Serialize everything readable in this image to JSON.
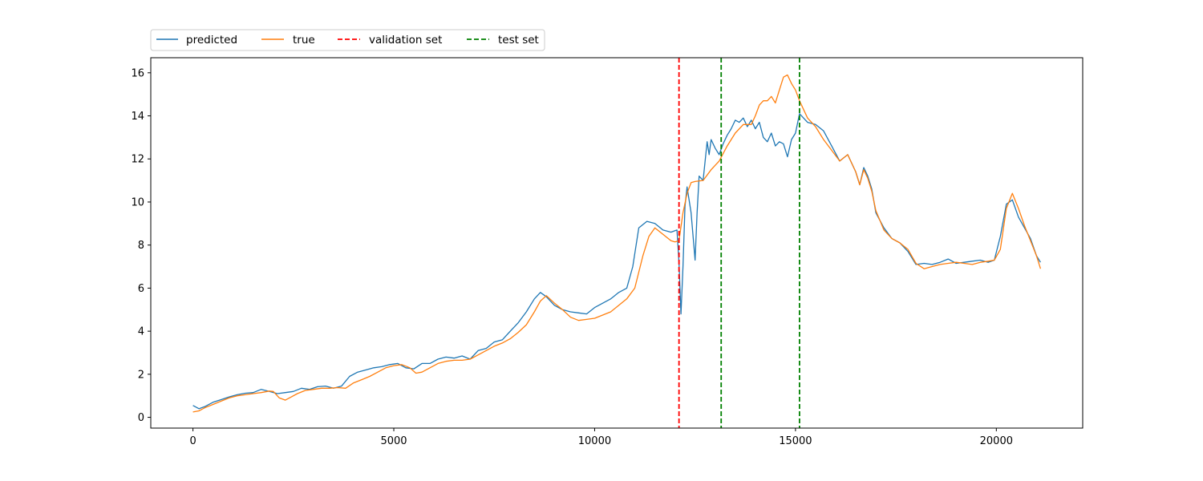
{
  "chart_data": {
    "type": "line",
    "title": "",
    "xlabel": "",
    "ylabel": "",
    "xlim": [
      -1050,
      22150
    ],
    "ylim": [
      -0.5,
      16.7
    ],
    "x_ticks": [
      0,
      5000,
      10000,
      15000,
      20000
    ],
    "y_ticks": [
      0,
      2,
      4,
      6,
      8,
      10,
      12,
      14,
      16
    ],
    "grid": false,
    "legend": {
      "placement": "top-left, outside above the plot",
      "entries": [
        {
          "label": "predicted",
          "color": "#1f77b4",
          "style": "solid"
        },
        {
          "label": "true",
          "color": "#ff7f0e",
          "style": "solid"
        },
        {
          "label": "validation set",
          "color": "#ff0000",
          "style": "dashed"
        },
        {
          "label": "test set",
          "color": "#008000",
          "style": "dashed"
        }
      ]
    },
    "series": [
      {
        "name": "predicted",
        "color": "#1f77b4",
        "x": [
          0,
          150,
          300,
          500,
          700,
          900,
          1100,
          1300,
          1500,
          1700,
          1900,
          2100,
          2300,
          2500,
          2700,
          2900,
          3100,
          3300,
          3500,
          3700,
          3900,
          4100,
          4300,
          4500,
          4700,
          4900,
          5100,
          5300,
          5500,
          5700,
          5900,
          6100,
          6300,
          6500,
          6700,
          6900,
          7100,
          7300,
          7500,
          7700,
          7900,
          8100,
          8300,
          8500,
          8650,
          8800,
          9000,
          9200,
          9400,
          9600,
          9800,
          10000,
          10200,
          10400,
          10600,
          10800,
          10950,
          11100,
          11300,
          11500,
          11700,
          11900,
          12050,
          12100,
          12150,
          12200,
          12250,
          12300,
          12400,
          12500,
          12550,
          12600,
          12700,
          12800,
          12850,
          12900,
          13000,
          13100,
          13200,
          13300,
          13400,
          13500,
          13600,
          13700,
          13800,
          13900,
          14000,
          14100,
          14200,
          14300,
          14400,
          14500,
          14600,
          14700,
          14800,
          14900,
          15000,
          15100,
          15300,
          15500,
          15700,
          15900,
          16100,
          16300,
          16500,
          16600,
          16700,
          16800,
          16900,
          17000,
          17200,
          17400,
          17600,
          17800,
          18000,
          18200,
          18400,
          18600,
          18800,
          19000,
          19200,
          19400,
          19600,
          19800,
          19950,
          20100,
          20250,
          20400,
          20550,
          20700,
          20850,
          21000,
          21100
        ],
        "values": [
          0.55,
          0.4,
          0.5,
          0.7,
          0.82,
          0.95,
          1.05,
          1.12,
          1.15,
          1.3,
          1.2,
          1.1,
          1.15,
          1.2,
          1.35,
          1.3,
          1.42,
          1.45,
          1.35,
          1.45,
          1.9,
          2.1,
          2.2,
          2.3,
          2.35,
          2.45,
          2.5,
          2.3,
          2.25,
          2.5,
          2.5,
          2.7,
          2.8,
          2.75,
          2.85,
          2.7,
          3.1,
          3.2,
          3.5,
          3.6,
          4.0,
          4.4,
          4.9,
          5.5,
          5.8,
          5.6,
          5.2,
          5.0,
          4.9,
          4.85,
          4.8,
          5.1,
          5.3,
          5.5,
          5.8,
          6.0,
          7.0,
          8.8,
          9.1,
          9.0,
          8.7,
          8.6,
          8.7,
          7.2,
          4.8,
          7.0,
          9.8,
          10.7,
          9.5,
          7.3,
          9.5,
          11.2,
          11.0,
          12.8,
          12.2,
          12.9,
          12.5,
          12.2,
          12.7,
          13.1,
          13.4,
          13.8,
          13.7,
          13.9,
          13.5,
          13.8,
          13.4,
          13.7,
          13.0,
          12.8,
          13.2,
          12.6,
          12.8,
          12.7,
          12.1,
          12.9,
          13.2,
          14.1,
          13.7,
          13.6,
          13.3,
          12.6,
          11.9,
          12.2,
          11.4,
          10.8,
          11.6,
          11.2,
          10.6,
          9.5,
          8.8,
          8.3,
          8.1,
          7.7,
          7.1,
          7.15,
          7.1,
          7.2,
          7.35,
          7.15,
          7.2,
          7.25,
          7.3,
          7.2,
          7.3,
          8.4,
          9.9,
          10.1,
          9.3,
          8.8,
          8.3,
          7.5,
          7.2
        ]
      },
      {
        "name": "true",
        "color": "#ff7f0e",
        "x": [
          0,
          150,
          300,
          500,
          700,
          900,
          1100,
          1300,
          1500,
          1700,
          1900,
          2000,
          2150,
          2300,
          2450,
          2600,
          2800,
          3000,
          3200,
          3400,
          3600,
          3800,
          4000,
          4200,
          4400,
          4600,
          4800,
          5000,
          5200,
          5400,
          5550,
          5700,
          5900,
          6100,
          6300,
          6500,
          6700,
          6900,
          7100,
          7300,
          7500,
          7700,
          7900,
          8100,
          8300,
          8500,
          8650,
          8800,
          9000,
          9200,
          9400,
          9600,
          9800,
          10000,
          10200,
          10400,
          10600,
          10800,
          11000,
          11200,
          11350,
          11500,
          11700,
          11900,
          12000,
          12100,
          12200,
          12300,
          12400,
          12500,
          12700,
          12900,
          13100,
          13300,
          13500,
          13700,
          13900,
          14000,
          14100,
          14200,
          14300,
          14400,
          14500,
          14600,
          14700,
          14800,
          14900,
          15000,
          15100,
          15300,
          15500,
          15700,
          15900,
          16100,
          16300,
          16500,
          16600,
          16700,
          16800,
          16900,
          17000,
          17200,
          17400,
          17600,
          17800,
          18000,
          18200,
          18400,
          18600,
          18800,
          19000,
          19200,
          19400,
          19600,
          19800,
          19950,
          20100,
          20250,
          20400,
          20550,
          20700,
          20850,
          21000,
          21100
        ],
        "values": [
          0.25,
          0.3,
          0.45,
          0.6,
          0.75,
          0.9,
          1.0,
          1.05,
          1.1,
          1.15,
          1.22,
          1.2,
          0.9,
          0.8,
          0.95,
          1.1,
          1.25,
          1.3,
          1.35,
          1.35,
          1.38,
          1.35,
          1.6,
          1.75,
          1.9,
          2.1,
          2.3,
          2.4,
          2.45,
          2.3,
          2.05,
          2.1,
          2.3,
          2.5,
          2.6,
          2.65,
          2.65,
          2.7,
          2.9,
          3.1,
          3.3,
          3.45,
          3.65,
          3.95,
          4.3,
          4.9,
          5.4,
          5.65,
          5.3,
          5.0,
          4.65,
          4.5,
          4.55,
          4.6,
          4.75,
          4.9,
          5.2,
          5.5,
          6.0,
          7.5,
          8.4,
          8.8,
          8.5,
          8.2,
          8.15,
          8.2,
          9.5,
          10.4,
          10.9,
          10.95,
          11.0,
          11.5,
          11.9,
          12.6,
          13.2,
          13.6,
          13.6,
          14.0,
          14.5,
          14.7,
          14.7,
          14.9,
          14.6,
          15.2,
          15.8,
          15.9,
          15.5,
          15.2,
          14.7,
          13.9,
          13.5,
          12.9,
          12.4,
          11.9,
          12.2,
          11.4,
          10.8,
          11.5,
          11.1,
          10.5,
          9.6,
          8.7,
          8.3,
          8.1,
          7.8,
          7.15,
          6.9,
          7.0,
          7.1,
          7.15,
          7.2,
          7.15,
          7.1,
          7.2,
          7.25,
          7.3,
          7.8,
          9.7,
          10.4,
          9.7,
          8.9,
          8.2,
          7.5,
          6.9
        ]
      }
    ],
    "vlines": [
      {
        "series": "validation set",
        "x": 12100,
        "color": "#ff0000"
      },
      {
        "series": "test set",
        "x": 13150,
        "color": "#008000"
      },
      {
        "series": "test set",
        "x": 15100,
        "color": "#008000"
      }
    ]
  }
}
